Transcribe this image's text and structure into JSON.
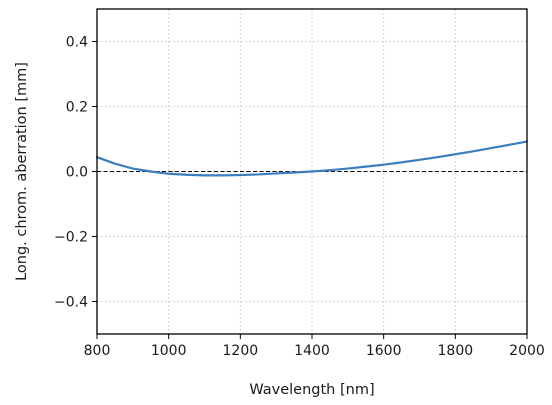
{
  "chart_data": {
    "type": "line",
    "title": "",
    "xlabel": "Wavelength [nm]",
    "ylabel": "Long. chrom. aberration [mm]",
    "xlim": [
      800,
      2000
    ],
    "ylim": [
      -0.5,
      0.5
    ],
    "xticks": [
      800,
      1000,
      1200,
      1400,
      1600,
      1800,
      2000
    ],
    "xtick_labels": [
      "800",
      "1000",
      "1200",
      "1400",
      "1600",
      "1800",
      "2000"
    ],
    "yticks": [
      -0.4,
      -0.2,
      0.0,
      0.2,
      0.4
    ],
    "ytick_labels": [
      "−0.4",
      "−0.2",
      "0.0",
      "0.2",
      "0.4"
    ],
    "grid": true,
    "reference_line": {
      "y": 0.0,
      "style": "dashed",
      "color": "#000000"
    },
    "series": [
      {
        "color": "#3a7ebf",
        "x": [
          800,
          850,
          900,
          950,
          1000,
          1050,
          1100,
          1150,
          1200,
          1250,
          1300,
          1350,
          1400,
          1450,
          1500,
          1550,
          1600,
          1650,
          1700,
          1750,
          1800,
          1850,
          1900,
          1950,
          2000
        ],
        "y": [
          0.044,
          0.024,
          0.009,
          0.0,
          -0.007,
          -0.01,
          -0.012,
          -0.012,
          -0.011,
          -0.009,
          -0.006,
          -0.003,
          0.0,
          0.004,
          0.009,
          0.015,
          0.021,
          0.028,
          0.036,
          0.044,
          0.053,
          0.062,
          0.072,
          0.082,
          0.092
        ]
      }
    ]
  }
}
